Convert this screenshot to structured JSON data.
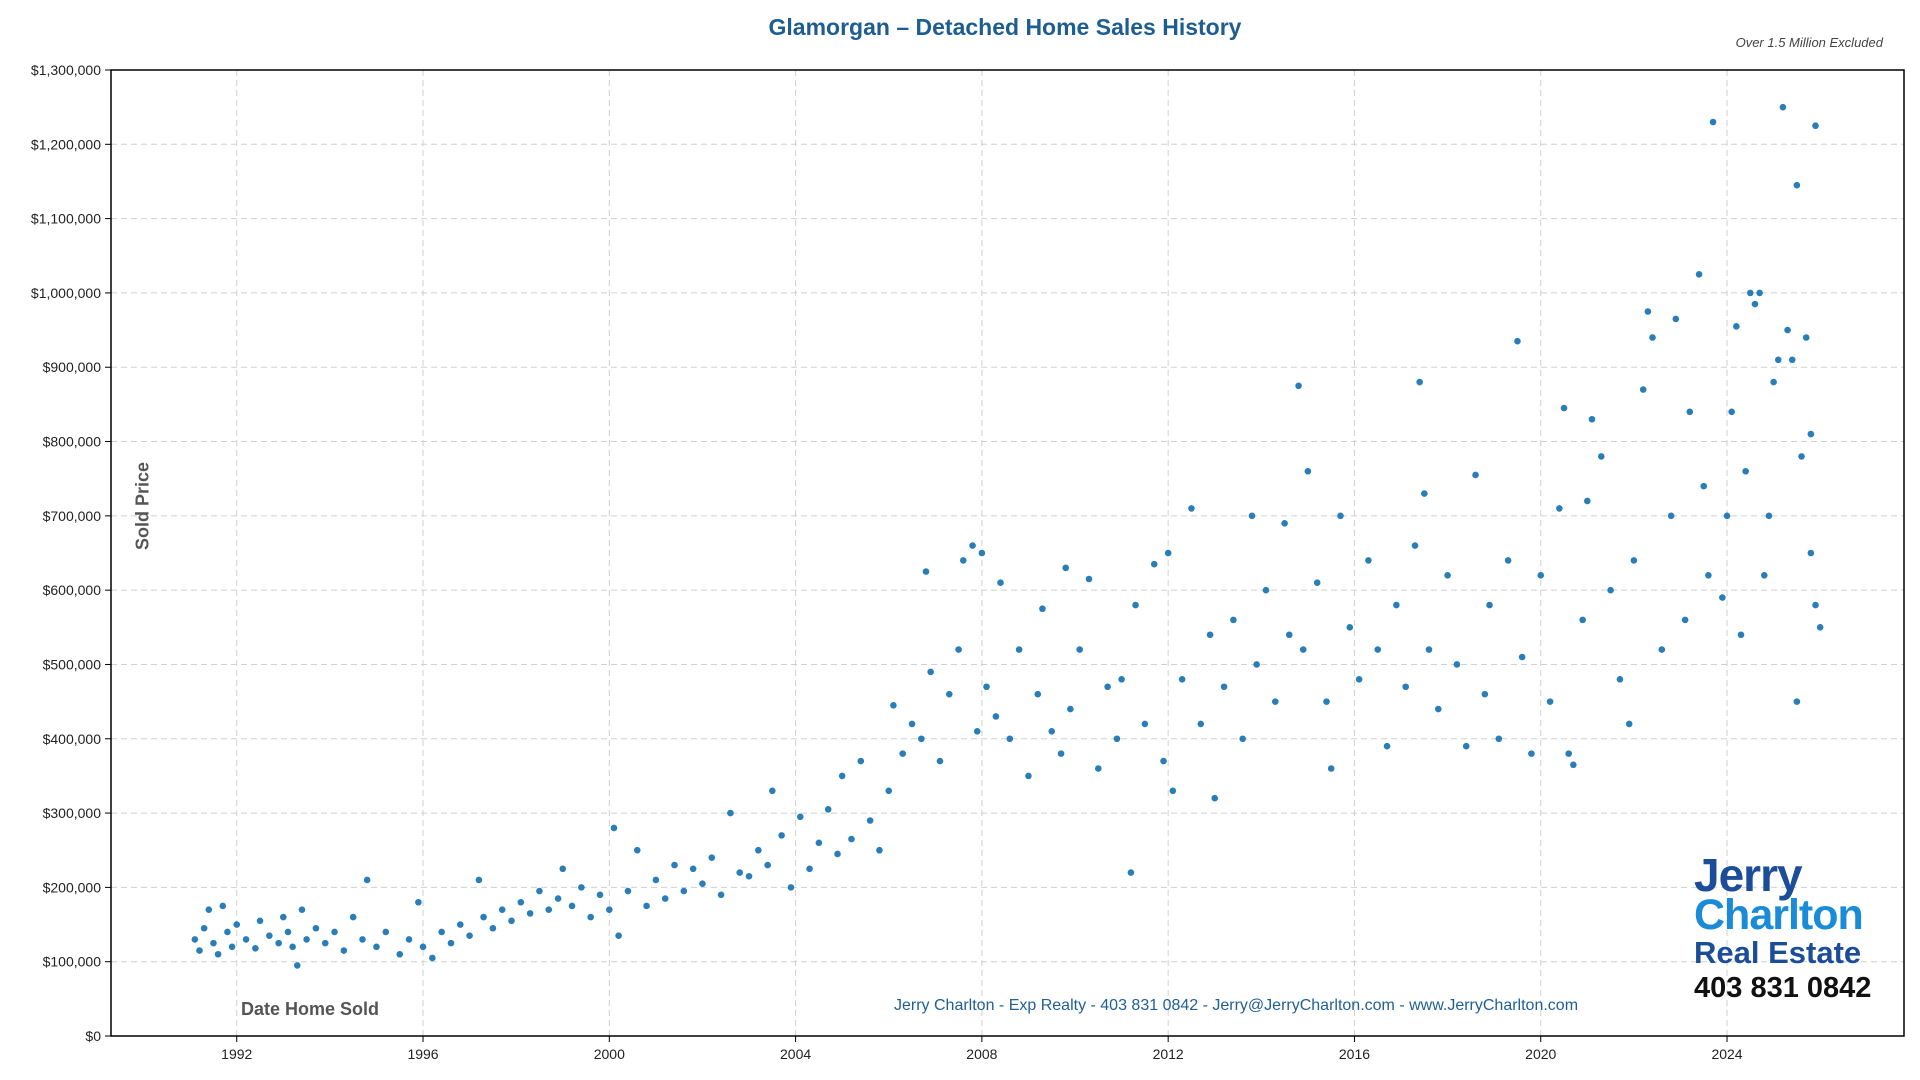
{
  "chart_data": {
    "type": "scatter",
    "title": "Glamorgan – Detached Home Sales History",
    "subtitle": "Over 1.5 Million Excluded",
    "xlabel": "Date Home Sold",
    "ylabel": "Sold Price",
    "xlim": [
      1989.3,
      2027.8
    ],
    "ylim": [
      0,
      1300000
    ],
    "x_ticks": [
      "1992",
      "1996",
      "2000",
      "2004",
      "2008",
      "2012",
      "2016",
      "2020",
      "2024"
    ],
    "x_tick_values": [
      1992,
      1996,
      2000,
      2004,
      2008,
      2012,
      2016,
      2020,
      2024
    ],
    "y_ticks": [
      "$0",
      "$100,000",
      "$200,000",
      "$300,000",
      "$400,000",
      "$500,000",
      "$600,000",
      "$700,000",
      "$800,000",
      "$900,000",
      "$1,000,000",
      "$1,100,000",
      "$1,200,000",
      "$1,300,000"
    ],
    "y_tick_values": [
      0,
      100000,
      200000,
      300000,
      400000,
      500000,
      600000,
      700000,
      800000,
      900000,
      1000000,
      1100000,
      1200000,
      1300000
    ],
    "grid": true,
    "marker_color": "#1f77b4",
    "points": [
      [
        1991.1,
        130000
      ],
      [
        1991.2,
        115000
      ],
      [
        1991.3,
        145000
      ],
      [
        1991.4,
        170000
      ],
      [
        1991.5,
        125000
      ],
      [
        1991.6,
        110000
      ],
      [
        1991.7,
        175000
      ],
      [
        1991.8,
        140000
      ],
      [
        1991.9,
        120000
      ],
      [
        1992.0,
        150000
      ],
      [
        1992.2,
        130000
      ],
      [
        1992.4,
        118000
      ],
      [
        1992.5,
        155000
      ],
      [
        1992.7,
        135000
      ],
      [
        1992.9,
        125000
      ],
      [
        1993.0,
        160000
      ],
      [
        1993.1,
        140000
      ],
      [
        1993.2,
        120000
      ],
      [
        1993.3,
        95000
      ],
      [
        1993.4,
        170000
      ],
      [
        1993.5,
        130000
      ],
      [
        1993.7,
        145000
      ],
      [
        1993.9,
        125000
      ],
      [
        1994.1,
        140000
      ],
      [
        1994.3,
        115000
      ],
      [
        1994.5,
        160000
      ],
      [
        1994.7,
        130000
      ],
      [
        1994.8,
        210000
      ],
      [
        1995.0,
        120000
      ],
      [
        1995.2,
        140000
      ],
      [
        1995.5,
        110000
      ],
      [
        1995.7,
        130000
      ],
      [
        1995.9,
        180000
      ],
      [
        1996.0,
        120000
      ],
      [
        1996.2,
        105000
      ],
      [
        1996.4,
        140000
      ],
      [
        1996.6,
        125000
      ],
      [
        1996.8,
        150000
      ],
      [
        1997.0,
        135000
      ],
      [
        1997.2,
        210000
      ],
      [
        1997.3,
        160000
      ],
      [
        1997.5,
        145000
      ],
      [
        1997.7,
        170000
      ],
      [
        1997.9,
        155000
      ],
      [
        1998.1,
        180000
      ],
      [
        1998.3,
        165000
      ],
      [
        1998.5,
        195000
      ],
      [
        1998.7,
        170000
      ],
      [
        1998.9,
        185000
      ],
      [
        1999.0,
        225000
      ],
      [
        1999.2,
        175000
      ],
      [
        1999.4,
        200000
      ],
      [
        1999.6,
        160000
      ],
      [
        1999.8,
        190000
      ],
      [
        2000.0,
        170000
      ],
      [
        2000.1,
        280000
      ],
      [
        2000.2,
        135000
      ],
      [
        2000.4,
        195000
      ],
      [
        2000.6,
        250000
      ],
      [
        2000.8,
        175000
      ],
      [
        2001.0,
        210000
      ],
      [
        2001.2,
        185000
      ],
      [
        2001.4,
        230000
      ],
      [
        2001.6,
        195000
      ],
      [
        2001.8,
        225000
      ],
      [
        2002.0,
        205000
      ],
      [
        2002.2,
        240000
      ],
      [
        2002.4,
        190000
      ],
      [
        2002.6,
        300000
      ],
      [
        2002.8,
        220000
      ],
      [
        2003.0,
        215000
      ],
      [
        2003.2,
        250000
      ],
      [
        2003.4,
        230000
      ],
      [
        2003.5,
        330000
      ],
      [
        2003.7,
        270000
      ],
      [
        2003.9,
        200000
      ],
      [
        2004.1,
        295000
      ],
      [
        2004.3,
        225000
      ],
      [
        2004.5,
        260000
      ],
      [
        2004.7,
        305000
      ],
      [
        2004.9,
        245000
      ],
      [
        2005.0,
        350000
      ],
      [
        2005.2,
        265000
      ],
      [
        2005.4,
        370000
      ],
      [
        2005.6,
        290000
      ],
      [
        2005.8,
        250000
      ],
      [
        2006.0,
        330000
      ],
      [
        2006.1,
        445000
      ],
      [
        2006.3,
        380000
      ],
      [
        2006.5,
        420000
      ],
      [
        2006.7,
        400000
      ],
      [
        2006.8,
        625000
      ],
      [
        2006.9,
        490000
      ],
      [
        2007.1,
        370000
      ],
      [
        2007.3,
        460000
      ],
      [
        2007.5,
        520000
      ],
      [
        2007.6,
        640000
      ],
      [
        2007.8,
        660000
      ],
      [
        2007.9,
        410000
      ],
      [
        2008.0,
        650000
      ],
      [
        2008.1,
        470000
      ],
      [
        2008.3,
        430000
      ],
      [
        2008.4,
        610000
      ],
      [
        2008.6,
        400000
      ],
      [
        2008.8,
        520000
      ],
      [
        2009.0,
        350000
      ],
      [
        2009.2,
        460000
      ],
      [
        2009.3,
        575000
      ],
      [
        2009.5,
        410000
      ],
      [
        2009.7,
        380000
      ],
      [
        2009.8,
        630000
      ],
      [
        2009.9,
        440000
      ],
      [
        2010.1,
        520000
      ],
      [
        2010.3,
        615000
      ],
      [
        2010.5,
        360000
      ],
      [
        2010.7,
        470000
      ],
      [
        2010.9,
        400000
      ],
      [
        2011.0,
        480000
      ],
      [
        2011.2,
        220000
      ],
      [
        2011.3,
        580000
      ],
      [
        2011.5,
        420000
      ],
      [
        2011.7,
        635000
      ],
      [
        2011.9,
        370000
      ],
      [
        2012.0,
        650000
      ],
      [
        2012.1,
        330000
      ],
      [
        2012.3,
        480000
      ],
      [
        2012.5,
        710000
      ],
      [
        2012.7,
        420000
      ],
      [
        2012.9,
        540000
      ],
      [
        2013.0,
        320000
      ],
      [
        2013.2,
        470000
      ],
      [
        2013.4,
        560000
      ],
      [
        2013.6,
        400000
      ],
      [
        2013.8,
        700000
      ],
      [
        2013.9,
        500000
      ],
      [
        2014.1,
        600000
      ],
      [
        2014.3,
        450000
      ],
      [
        2014.5,
        690000
      ],
      [
        2014.6,
        540000
      ],
      [
        2014.8,
        875000
      ],
      [
        2014.9,
        520000
      ],
      [
        2015.0,
        760000
      ],
      [
        2015.2,
        610000
      ],
      [
        2015.4,
        450000
      ],
      [
        2015.5,
        360000
      ],
      [
        2015.7,
        700000
      ],
      [
        2015.9,
        550000
      ],
      [
        2016.1,
        480000
      ],
      [
        2016.3,
        640000
      ],
      [
        2016.5,
        520000
      ],
      [
        2016.7,
        390000
      ],
      [
        2016.9,
        580000
      ],
      [
        2017.1,
        470000
      ],
      [
        2017.3,
        660000
      ],
      [
        2017.4,
        880000
      ],
      [
        2017.5,
        730000
      ],
      [
        2017.6,
        520000
      ],
      [
        2017.8,
        440000
      ],
      [
        2018.0,
        620000
      ],
      [
        2018.2,
        500000
      ],
      [
        2018.4,
        390000
      ],
      [
        2018.6,
        755000
      ],
      [
        2018.8,
        460000
      ],
      [
        2018.9,
        580000
      ],
      [
        2019.1,
        400000
      ],
      [
        2019.3,
        640000
      ],
      [
        2019.5,
        935000
      ],
      [
        2019.6,
        510000
      ],
      [
        2019.8,
        380000
      ],
      [
        2020.0,
        620000
      ],
      [
        2020.2,
        450000
      ],
      [
        2020.4,
        710000
      ],
      [
        2020.5,
        845000
      ],
      [
        2020.6,
        380000
      ],
      [
        2020.7,
        365000
      ],
      [
        2020.9,
        560000
      ],
      [
        2021.0,
        720000
      ],
      [
        2021.1,
        830000
      ],
      [
        2021.3,
        780000
      ],
      [
        2021.5,
        600000
      ],
      [
        2021.7,
        480000
      ],
      [
        2021.9,
        420000
      ],
      [
        2022.0,
        640000
      ],
      [
        2022.2,
        870000
      ],
      [
        2022.3,
        975000
      ],
      [
        2022.4,
        940000
      ],
      [
        2022.6,
        520000
      ],
      [
        2022.8,
        700000
      ],
      [
        2022.9,
        965000
      ],
      [
        2023.1,
        560000
      ],
      [
        2023.2,
        840000
      ],
      [
        2023.4,
        1025000
      ],
      [
        2023.5,
        740000
      ],
      [
        2023.6,
        620000
      ],
      [
        2023.7,
        1230000
      ],
      [
        2023.9,
        590000
      ],
      [
        2024.0,
        700000
      ],
      [
        2024.1,
        840000
      ],
      [
        2024.2,
        955000
      ],
      [
        2024.3,
        540000
      ],
      [
        2024.4,
        760000
      ],
      [
        2024.5,
        1000000
      ],
      [
        2024.6,
        985000
      ],
      [
        2024.7,
        1000000
      ],
      [
        2024.8,
        620000
      ],
      [
        2024.9,
        700000
      ],
      [
        2025.0,
        880000
      ],
      [
        2025.1,
        910000
      ],
      [
        2025.2,
        1250000
      ],
      [
        2025.3,
        950000
      ],
      [
        2025.4,
        910000
      ],
      [
        2025.5,
        1145000
      ],
      [
        2025.5,
        450000
      ],
      [
        2025.6,
        780000
      ],
      [
        2025.7,
        940000
      ],
      [
        2025.8,
        810000
      ],
      [
        2025.8,
        650000
      ],
      [
        2025.9,
        1225000
      ],
      [
        2025.9,
        580000
      ],
      [
        2026.0,
        550000
      ]
    ]
  },
  "footer": {
    "contact": "Jerry Charlton - Exp Realty - 403 831 0842 - Jerry@JerryCharlton.com - www.JerryCharlton.com"
  },
  "logo": {
    "line1": "Jerry",
    "line2": "Charlton",
    "line3": "Real Estate",
    "phone": "403 831 0842"
  }
}
